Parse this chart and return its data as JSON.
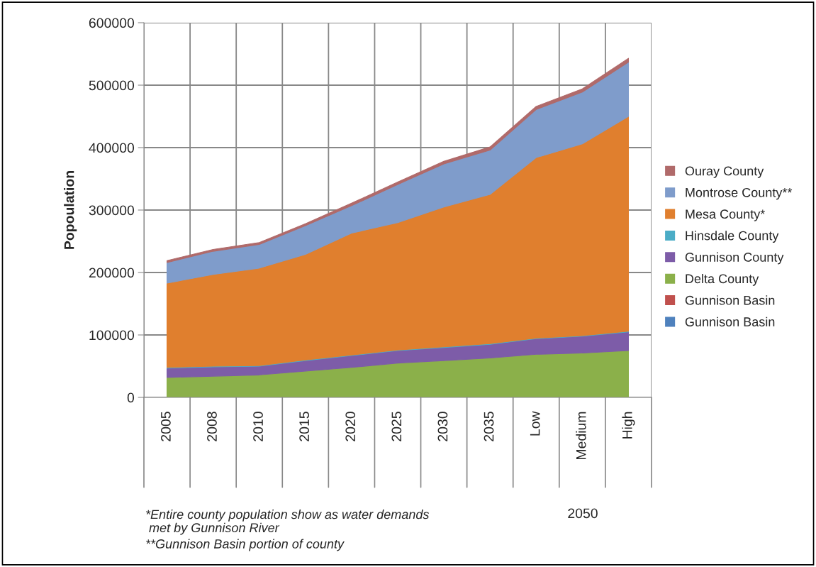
{
  "chart_data": {
    "type": "area",
    "stacked": true,
    "ylabel": "Popoulation",
    "categories": [
      "2005",
      "2008",
      "2010",
      "2015",
      "2020",
      "2025",
      "2030",
      "2035",
      "Low",
      "Medium",
      "High"
    ],
    "series": [
      {
        "name": "Gunnison Basin",
        "color": "#4f81bd",
        "values": [
          null,
          null,
          null,
          null,
          null,
          null,
          null,
          null,
          null,
          null,
          null
        ]
      },
      {
        "name": "Gunnison Basin",
        "color": "#c0504d",
        "values": [
          null,
          null,
          null,
          null,
          null,
          null,
          null,
          null,
          null,
          null,
          null
        ]
      },
      {
        "name": "Delta County",
        "color": "#8bb04a",
        "values": [
          32000,
          34000,
          36000,
          42000,
          48000,
          55000,
          59000,
          63000,
          69000,
          71000,
          75000
        ]
      },
      {
        "name": "Gunnison County",
        "color": "#7d5ca8",
        "values": [
          15000,
          15000,
          14000,
          17000,
          19000,
          20000,
          21000,
          22000,
          25000,
          27000,
          30000
        ]
      },
      {
        "name": "Hinsdale County",
        "color": "#4bacc6",
        "values": [
          1000,
          1000,
          1000,
          1000,
          1000,
          1000,
          1000,
          1000,
          1000,
          1000,
          1000
        ]
      },
      {
        "name": "Mesa County*",
        "color": "#e07f2e",
        "values": [
          135000,
          147000,
          156000,
          169000,
          195000,
          204000,
          224000,
          239000,
          289000,
          307000,
          344000
        ]
      },
      {
        "name": "Montrose County**",
        "color": "#7f9ccb",
        "values": [
          33000,
          37000,
          38000,
          46000,
          44000,
          61000,
          69000,
          71000,
          77000,
          83000,
          87000
        ]
      },
      {
        "name": "Ouray County",
        "color": "#b06a6a",
        "values": [
          3000,
          3000,
          3000,
          3000,
          4000,
          4000,
          4000,
          5000,
          5000,
          5000,
          6000
        ]
      }
    ],
    "ylim": [
      0,
      600000
    ],
    "yticks": [
      0,
      100000,
      200000,
      300000,
      400000,
      500000,
      600000
    ],
    "grid": true,
    "legend": "right",
    "annotations": [
      "2050",
      "*Entire county population show as water demands\n met by Gunnison River",
      "**Gunnison Basin portion of county"
    ]
  }
}
